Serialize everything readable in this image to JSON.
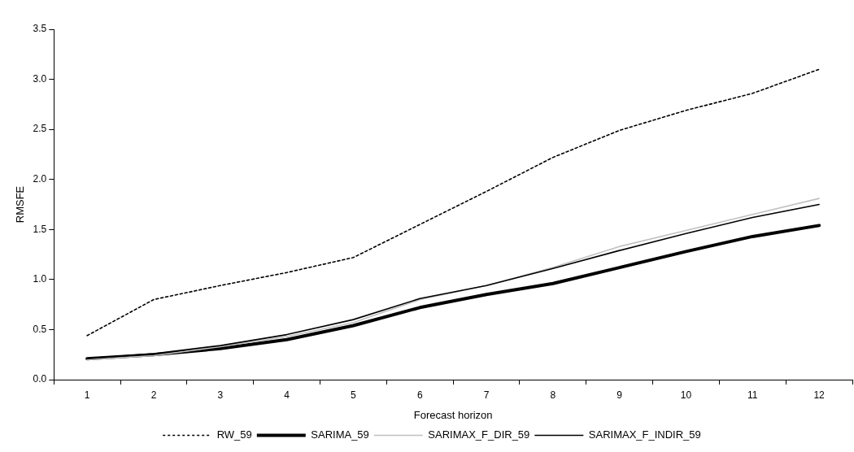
{
  "chart_data": {
    "type": "line",
    "xlabel": "Forecast horizon",
    "ylabel": "RMSFE",
    "categories": [
      "1",
      "2",
      "3",
      "4",
      "5",
      "6",
      "7",
      "8",
      "9",
      "10",
      "11",
      "12"
    ],
    "series": [
      {
        "name": "RW_59",
        "color": "#000000",
        "line_style": "dashed",
        "values": [
          0.44,
          0.8,
          0.94,
          1.07,
          1.22,
          1.55,
          1.88,
          2.22,
          2.49,
          2.69,
          2.86,
          3.1
        ]
      },
      {
        "name": "SARIMA_59",
        "color": "#000000",
        "line_style": "solid",
        "values": [
          0.21,
          0.25,
          0.31,
          0.4,
          0.54,
          0.72,
          0.85,
          0.96,
          1.12,
          1.28,
          1.43,
          1.54
        ]
      },
      {
        "name": "SARIMAX_F_DIR_59",
        "color": "#c0c0c0",
        "line_style": "solid",
        "values": [
          0.2,
          0.24,
          0.33,
          0.43,
          0.57,
          0.8,
          0.94,
          1.12,
          1.33,
          1.49,
          1.65,
          1.81
        ]
      },
      {
        "name": "SARIMAX_F_INDIR_59",
        "color": "#000000",
        "line_style": "solid",
        "values": [
          0.21,
          0.26,
          0.34,
          0.45,
          0.6,
          0.81,
          0.94,
          1.11,
          1.29,
          1.46,
          1.62,
          1.75
        ]
      }
    ],
    "ylim": [
      0,
      3.5
    ],
    "yticks": [
      {
        "value": 0,
        "label": "0.0"
      },
      {
        "value": 0.5,
        "label": "0.5"
      },
      {
        "value": 1,
        "label": "1.0"
      },
      {
        "value": 1.5,
        "label": "1.5"
      },
      {
        "value": 2,
        "label": "2.0"
      },
      {
        "value": 2.5,
        "label": "2.5"
      },
      {
        "value": 3,
        "label": "3.0"
      },
      {
        "value": 3.5,
        "label": "3.5"
      }
    ],
    "grid": false,
    "legend": "bottom",
    "marker": "none"
  }
}
